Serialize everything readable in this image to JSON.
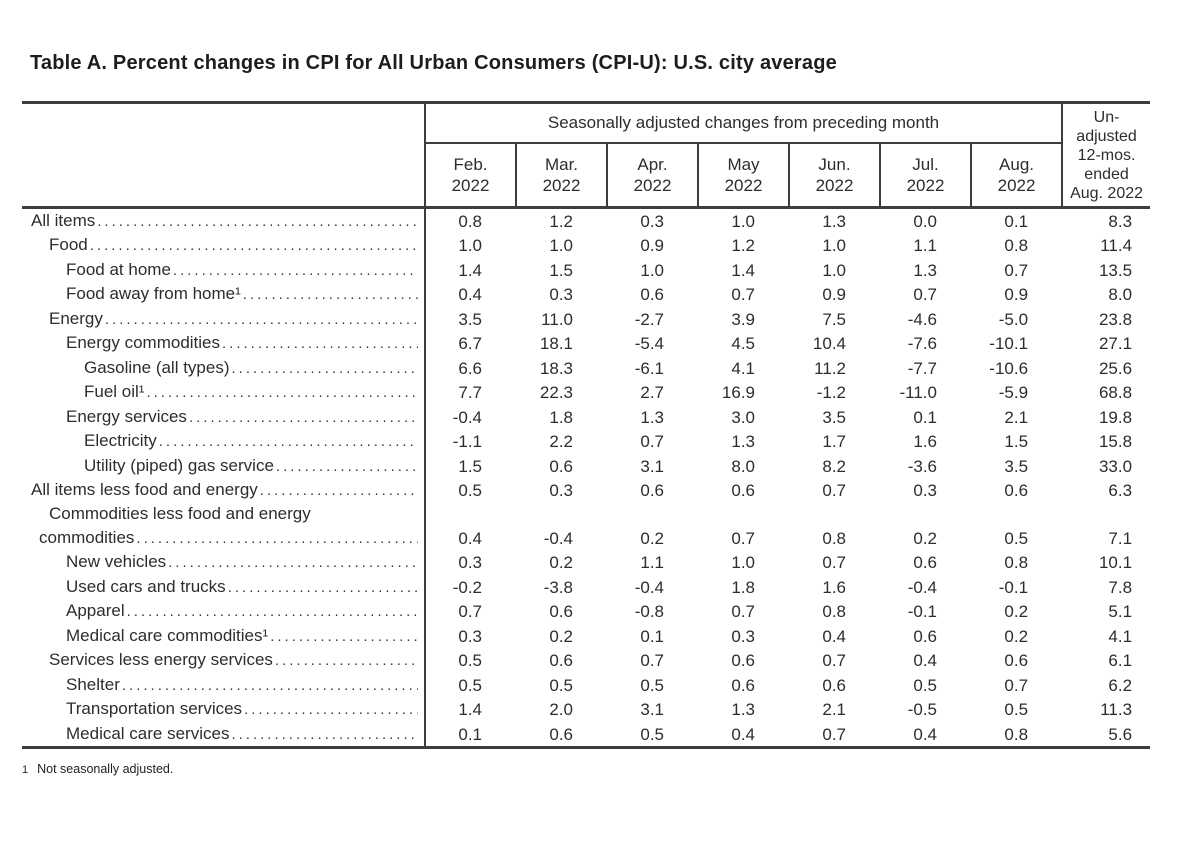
{
  "title": "Table A. Percent changes in CPI for All Urban Consumers (CPI-U): U.S. city average",
  "table": {
    "header": {
      "group_label": "Seasonally adjusted changes from preceding month",
      "months": [
        "Feb. 2022",
        "Mar. 2022",
        "Apr. 2022",
        "May 2022",
        "Jun. 2022",
        "Jul. 2022",
        "Aug. 2022"
      ],
      "unadjusted_lines": [
        "Un-",
        "adjusted",
        "12-mos.",
        "ended",
        "Aug. 2022"
      ]
    },
    "rows": [
      {
        "label": "All items",
        "indent": 0,
        "values": [
          "0.8",
          "1.2",
          "0.3",
          "1.0",
          "1.3",
          "0.0",
          "0.1",
          "8.3"
        ]
      },
      {
        "label": "Food",
        "indent": 1,
        "values": [
          "1.0",
          "1.0",
          "0.9",
          "1.2",
          "1.0",
          "1.1",
          "0.8",
          "11.4"
        ]
      },
      {
        "label": "Food at home",
        "indent": 2,
        "values": [
          "1.4",
          "1.5",
          "1.0",
          "1.4",
          "1.0",
          "1.3",
          "0.7",
          "13.5"
        ]
      },
      {
        "label": "Food away from home¹",
        "indent": 2,
        "values": [
          "0.4",
          "0.3",
          "0.6",
          "0.7",
          "0.9",
          "0.7",
          "0.9",
          "8.0"
        ]
      },
      {
        "label": "Energy",
        "indent": 1,
        "values": [
          "3.5",
          "11.0",
          "-2.7",
          "3.9",
          "7.5",
          "-4.6",
          "-5.0",
          "23.8"
        ]
      },
      {
        "label": "Energy commodities",
        "indent": 2,
        "values": [
          "6.7",
          "18.1",
          "-5.4",
          "4.5",
          "10.4",
          "-7.6",
          "-10.1",
          "27.1"
        ]
      },
      {
        "label": "Gasoline (all types)",
        "indent": 3,
        "values": [
          "6.6",
          "18.3",
          "-6.1",
          "4.1",
          "11.2",
          "-7.7",
          "-10.6",
          "25.6"
        ]
      },
      {
        "label": "Fuel oil¹",
        "indent": 3,
        "values": [
          "7.7",
          "22.3",
          "2.7",
          "16.9",
          "-1.2",
          "-11.0",
          "-5.9",
          "68.8"
        ]
      },
      {
        "label": "Energy services",
        "indent": 2,
        "values": [
          "-0.4",
          "1.8",
          "1.3",
          "3.0",
          "3.5",
          "0.1",
          "2.1",
          "19.8"
        ]
      },
      {
        "label": "Electricity",
        "indent": 3,
        "values": [
          "-1.1",
          "2.2",
          "0.7",
          "1.3",
          "1.7",
          "1.6",
          "1.5",
          "15.8"
        ]
      },
      {
        "label": "Utility (piped) gas service",
        "indent": 3,
        "values": [
          "1.5",
          "0.6",
          "3.1",
          "8.0",
          "8.2",
          "-3.6",
          "3.5",
          "33.0"
        ]
      },
      {
        "label": "All items less food and energy",
        "indent": 0,
        "values": [
          "0.5",
          "0.3",
          "0.6",
          "0.6",
          "0.7",
          "0.3",
          "0.6",
          "6.3"
        ]
      },
      {
        "label": "Commodities less food and energy",
        "label2": "commodities",
        "indent": 1,
        "values": [
          "0.4",
          "-0.4",
          "0.2",
          "0.7",
          "0.8",
          "0.2",
          "0.5",
          "7.1"
        ]
      },
      {
        "label": "New vehicles",
        "indent": 2,
        "values": [
          "0.3",
          "0.2",
          "1.1",
          "1.0",
          "0.7",
          "0.6",
          "0.8",
          "10.1"
        ]
      },
      {
        "label": "Used cars and trucks",
        "indent": 2,
        "values": [
          "-0.2",
          "-3.8",
          "-0.4",
          "1.8",
          "1.6",
          "-0.4",
          "-0.1",
          "7.8"
        ]
      },
      {
        "label": "Apparel",
        "indent": 2,
        "values": [
          "0.7",
          "0.6",
          "-0.8",
          "0.7",
          "0.8",
          "-0.1",
          "0.2",
          "5.1"
        ]
      },
      {
        "label": "Medical care commodities¹",
        "indent": 2,
        "values": [
          "0.3",
          "0.2",
          "0.1",
          "0.3",
          "0.4",
          "0.6",
          "0.2",
          "4.1"
        ]
      },
      {
        "label": "Services less energy services",
        "indent": 1,
        "values": [
          "0.5",
          "0.6",
          "0.7",
          "0.6",
          "0.7",
          "0.4",
          "0.6",
          "6.1"
        ]
      },
      {
        "label": "Shelter",
        "indent": 2,
        "values": [
          "0.5",
          "0.5",
          "0.5",
          "0.6",
          "0.6",
          "0.5",
          "0.7",
          "6.2"
        ]
      },
      {
        "label": "Transportation services",
        "indent": 2,
        "values": [
          "1.4",
          "2.0",
          "3.1",
          "1.3",
          "2.1",
          "-0.5",
          "0.5",
          "11.3"
        ]
      },
      {
        "label": "Medical care services",
        "indent": 2,
        "values": [
          "0.1",
          "0.6",
          "0.5",
          "0.4",
          "0.7",
          "0.4",
          "0.8",
          "5.6"
        ]
      }
    ]
  },
  "footnote": {
    "marker": "1",
    "text": "Not seasonally adjusted."
  }
}
